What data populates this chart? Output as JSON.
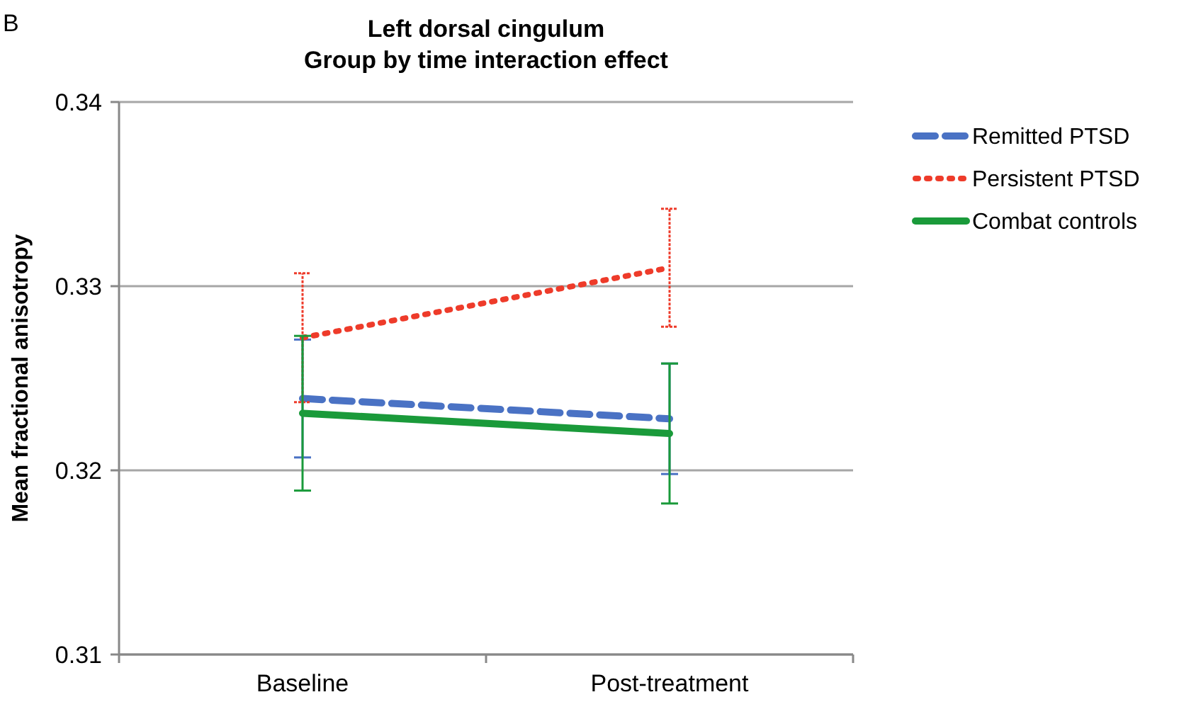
{
  "chart_data": {
    "type": "line",
    "title": "Left dorsal cingulum\nGroup by time interaction effect",
    "annotations": [
      "B"
    ],
    "categories": [
      "Baseline",
      "Post-treatment"
    ],
    "ylabel": "Mean fractional anisotropy",
    "ylim": [
      0.31,
      0.34
    ],
    "yticks": [
      0.31,
      0.32,
      0.33,
      0.34
    ],
    "grid": "y",
    "legend": "right",
    "marker": "none",
    "series": [
      {
        "name": "Remitted PTSD",
        "color": "#4a72c4",
        "line_style": "dashed",
        "values": [
          0.3239,
          0.3228
        ],
        "errors": [
          0.0032,
          0.003
        ]
      },
      {
        "name": "Persistent PTSD",
        "color": "#ee3b2a",
        "line_style": "dotted",
        "values": [
          0.3272,
          0.331
        ],
        "errors": [
          0.0035,
          0.0032
        ]
      },
      {
        "name": "Combat controls",
        "color": "#1a9a3a",
        "line_style": "solid",
        "values": [
          0.3231,
          0.322
        ],
        "errors": [
          0.0042,
          0.0038
        ]
      }
    ]
  }
}
